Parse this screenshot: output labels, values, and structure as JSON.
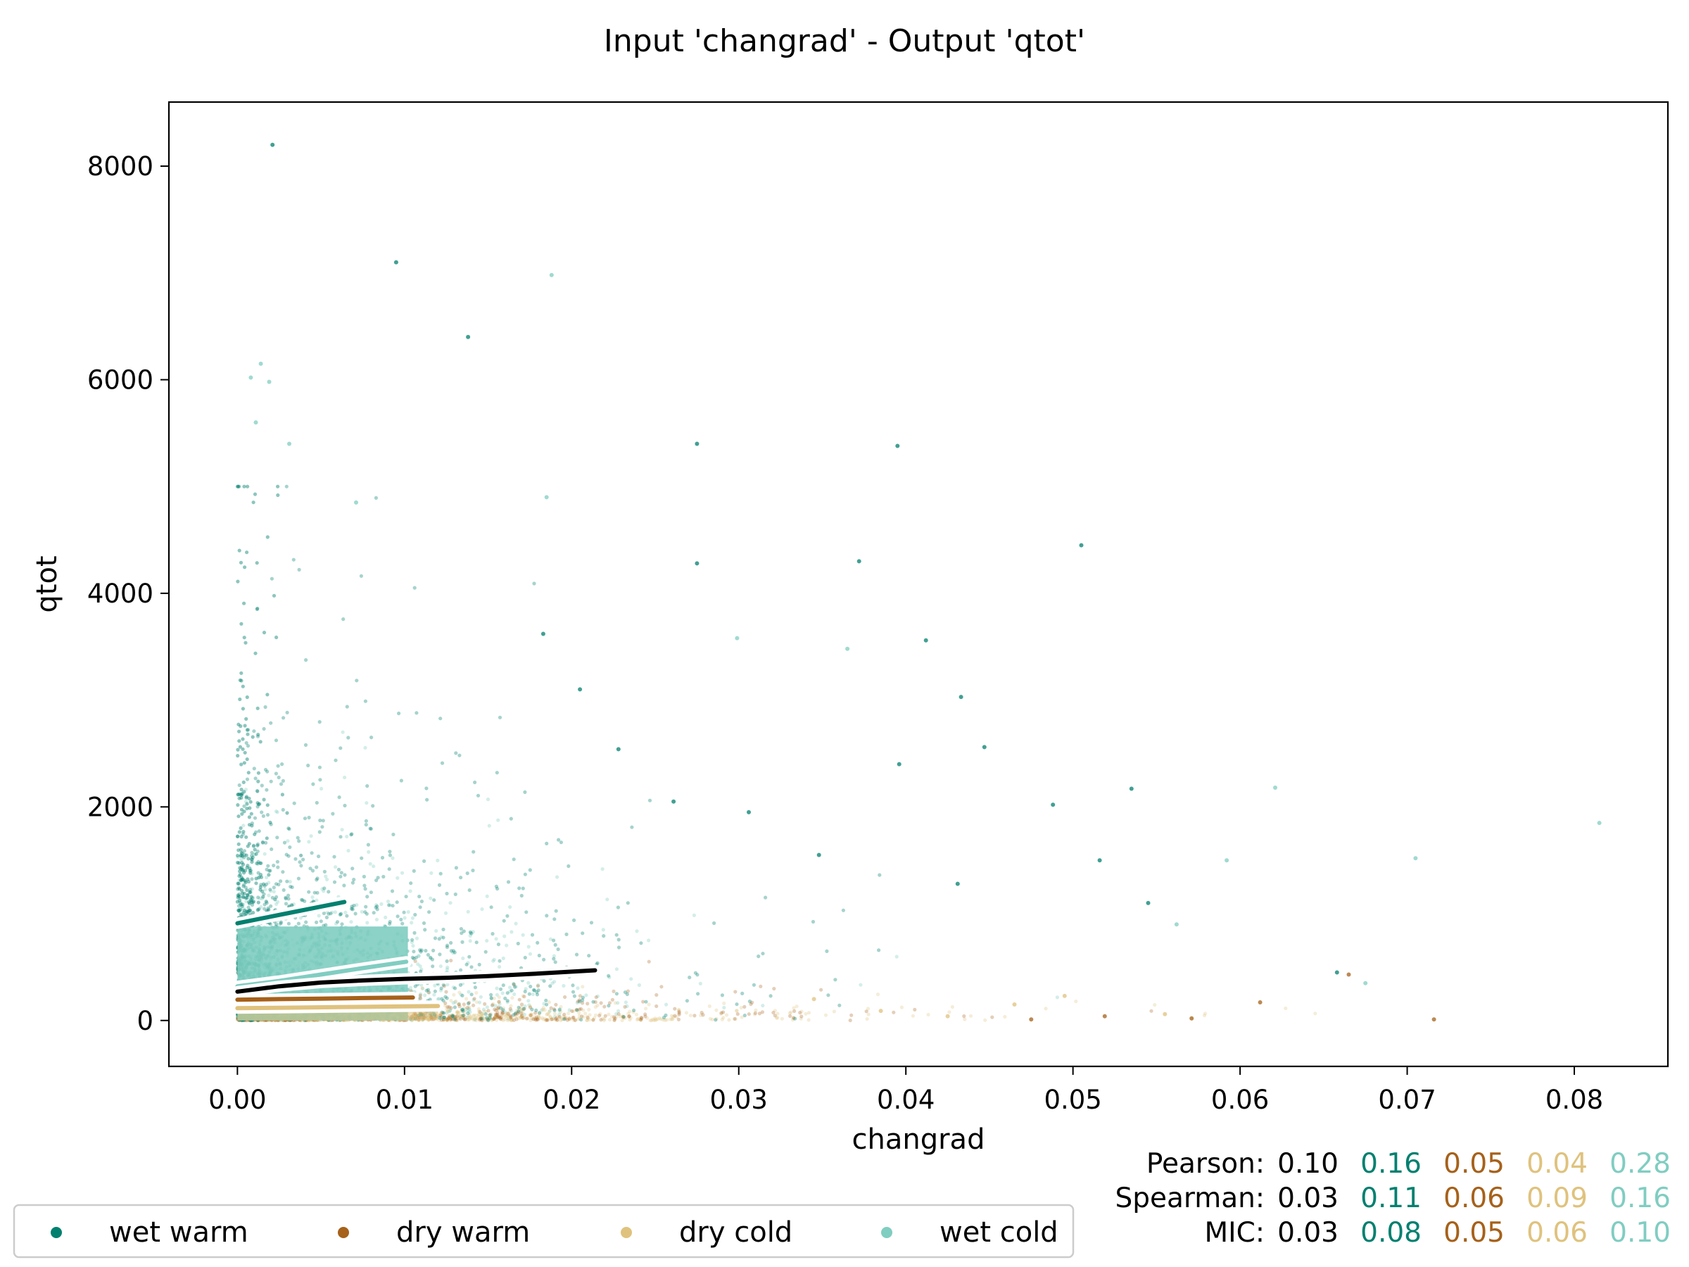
{
  "chart_data": {
    "type": "scatter",
    "title": "Input 'changrad' - Output 'qtot'",
    "xlabel": "changrad",
    "ylabel": "qtot",
    "xlim": [
      -0.0041,
      0.0856
    ],
    "ylim": [
      -430,
      8600
    ],
    "x_ticks": [
      0.0,
      0.01,
      0.02,
      0.03,
      0.04,
      0.05,
      0.06,
      0.07,
      0.08
    ],
    "x_tick_labels": [
      "0.00",
      "0.01",
      "0.02",
      "0.03",
      "0.04",
      "0.05",
      "0.06",
      "0.07",
      "0.08"
    ],
    "y_ticks": [
      0,
      2000,
      4000,
      6000,
      8000
    ],
    "y_tick_labels": [
      "0",
      "2000",
      "4000",
      "6000",
      "8000"
    ],
    "grid": false,
    "legend_placement": "bottom-left, below plot",
    "series": [
      {
        "name": "wet warm",
        "color": "#01806f",
        "trend": {
          "x": [
            0.0,
            0.0016,
            0.0032,
            0.0048,
            0.0064
          ],
          "y": [
            910,
            960,
            1010,
            1060,
            1110
          ]
        },
        "points": [
          [
            0.0021,
            8200
          ],
          [
            0.0095,
            7100
          ],
          [
            0.0138,
            6400
          ],
          [
            0.0275,
            5400
          ],
          [
            0.0395,
            5380
          ],
          [
            0.0505,
            4450
          ],
          [
            0.0372,
            4300
          ],
          [
            0.0275,
            4280
          ],
          [
            0.0412,
            3560
          ],
          [
            0.0433,
            3030
          ],
          [
            0.0447,
            2560
          ],
          [
            0.0396,
            2400
          ],
          [
            0.0488,
            2020
          ],
          [
            0.0535,
            2170
          ],
          [
            0.0516,
            1500
          ],
          [
            0.0545,
            1100
          ],
          [
            0.0658,
            450
          ],
          [
            0.0431,
            1280
          ],
          [
            0.0348,
            1550
          ],
          [
            0.0306,
            1950
          ],
          [
            0.0261,
            2050
          ],
          [
            0.0228,
            2540
          ],
          [
            0.0205,
            3100
          ],
          [
            0.0183,
            3620
          ]
        ]
      },
      {
        "name": "dry warm",
        "color": "#a6611a",
        "trend": {
          "x": [
            0.0,
            0.0025,
            0.005,
            0.0075,
            0.0105
          ],
          "y": [
            195,
            200,
            205,
            210,
            215
          ]
        },
        "points": [
          [
            0.0716,
            10
          ],
          [
            0.0665,
            430
          ],
          [
            0.0571,
            20
          ],
          [
            0.0475,
            10
          ],
          [
            0.0612,
            170
          ],
          [
            0.0519,
            40
          ]
        ]
      },
      {
        "name": "dry cold",
        "color": "#dfc27d",
        "trend": {
          "x": [
            0.0,
            0.003,
            0.006,
            0.009,
            0.012
          ],
          "y": [
            115,
            120,
            125,
            130,
            135
          ]
        },
        "points": [
          [
            0.0555,
            60
          ],
          [
            0.0465,
            150
          ],
          [
            0.0425,
            40
          ],
          [
            0.0385,
            90
          ],
          [
            0.0345,
            200
          ],
          [
            0.0495,
            230
          ]
        ]
      },
      {
        "name": "wet cold",
        "color": "#80cdc1",
        "trend": {
          "x": [
            0.0,
            0.0025,
            0.005,
            0.0075,
            0.0101
          ],
          "y": [
            320,
            370,
            430,
            490,
            550
          ]
        },
        "points": [
          [
            0.0008,
            6020
          ],
          [
            0.0014,
            6150
          ],
          [
            0.0019,
            5980
          ],
          [
            0.0011,
            5600
          ],
          [
            0.0031,
            5400
          ],
          [
            0.0815,
            1850
          ],
          [
            0.0705,
            1520
          ],
          [
            0.0675,
            350
          ],
          [
            0.0621,
            2180
          ],
          [
            0.0592,
            1500
          ],
          [
            0.0562,
            900
          ],
          [
            0.0188,
            6980
          ],
          [
            0.0071,
            4850
          ],
          [
            0.0185,
            4900
          ],
          [
            0.0365,
            3480
          ],
          [
            0.0299,
            3580
          ]
        ]
      }
    ],
    "overall_trend": {
      "name": "all",
      "color": "#000000",
      "x": [
        0.0,
        0.0025,
        0.005,
        0.0075,
        0.01,
        0.0125,
        0.015,
        0.0175,
        0.0214
      ],
      "y": [
        270,
        320,
        355,
        375,
        390,
        400,
        415,
        435,
        470
      ]
    },
    "correlations": {
      "column_colors": [
        "#000000",
        "#01806f",
        "#a6611a",
        "#dfc27d",
        "#80cdc1"
      ],
      "rows": [
        {
          "label": "Pearson:",
          "values": [
            "0.10",
            "0.16",
            "0.05",
            "0.04",
            "0.28"
          ]
        },
        {
          "label": "Spearman:",
          "values": [
            "0.03",
            "0.11",
            "0.06",
            "0.09",
            "0.16"
          ]
        },
        {
          "label": "MIC:",
          "values": [
            "0.03",
            "0.08",
            "0.05",
            "0.06",
            "0.10"
          ]
        }
      ]
    }
  },
  "legend": {
    "items": [
      {
        "label": "wet warm",
        "color": "#01806f"
      },
      {
        "label": "dry warm",
        "color": "#a6611a"
      },
      {
        "label": "dry cold",
        "color": "#dfc27d"
      },
      {
        "label": "wet cold",
        "color": "#80cdc1"
      }
    ]
  }
}
